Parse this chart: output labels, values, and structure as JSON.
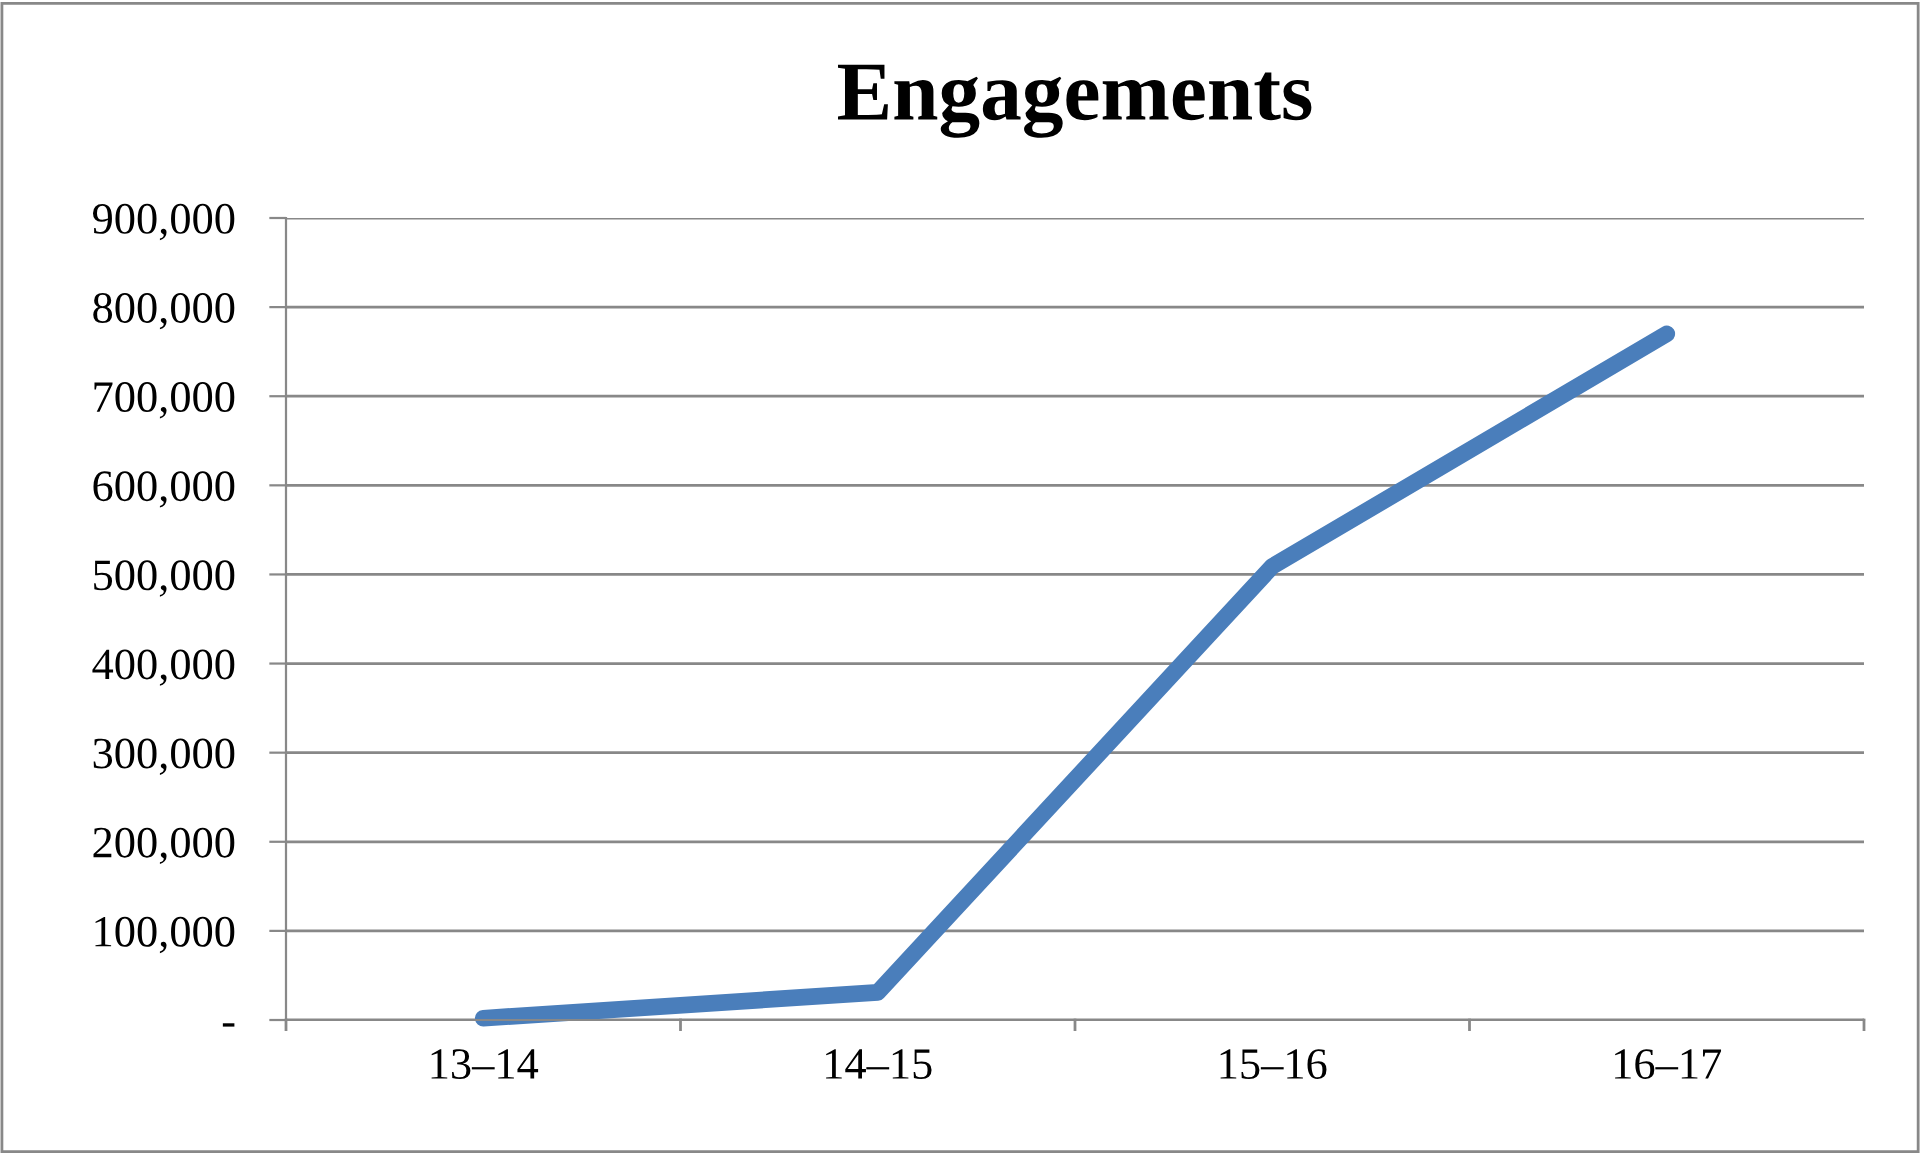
{
  "chart_data": {
    "type": "line",
    "title": "Engagements",
    "categories": [
      "13–14",
      "14–15",
      "15–16",
      "16–17"
    ],
    "series": [
      {
        "color": "#4a7ebb",
        "values": [
          2000,
          31000,
          509000,
          770000
        ]
      }
    ],
    "ylim": [
      0,
      900000
    ],
    "yticks": [
      {
        "value": 0,
        "label": "-"
      },
      {
        "value": 100000,
        "label": "100,000"
      },
      {
        "value": 200000,
        "label": "200,000"
      },
      {
        "value": 300000,
        "label": "300,000"
      },
      {
        "value": 400000,
        "label": "400,000"
      },
      {
        "value": 500000,
        "label": "500,000"
      },
      {
        "value": 600000,
        "label": "600,000"
      },
      {
        "value": 700000,
        "label": "700,000"
      },
      {
        "value": 800000,
        "label": "800,000"
      },
      {
        "value": 900000,
        "label": "900,000"
      }
    ],
    "grid": "y",
    "legend": false,
    "marker": "none",
    "line_style": "solid"
  }
}
